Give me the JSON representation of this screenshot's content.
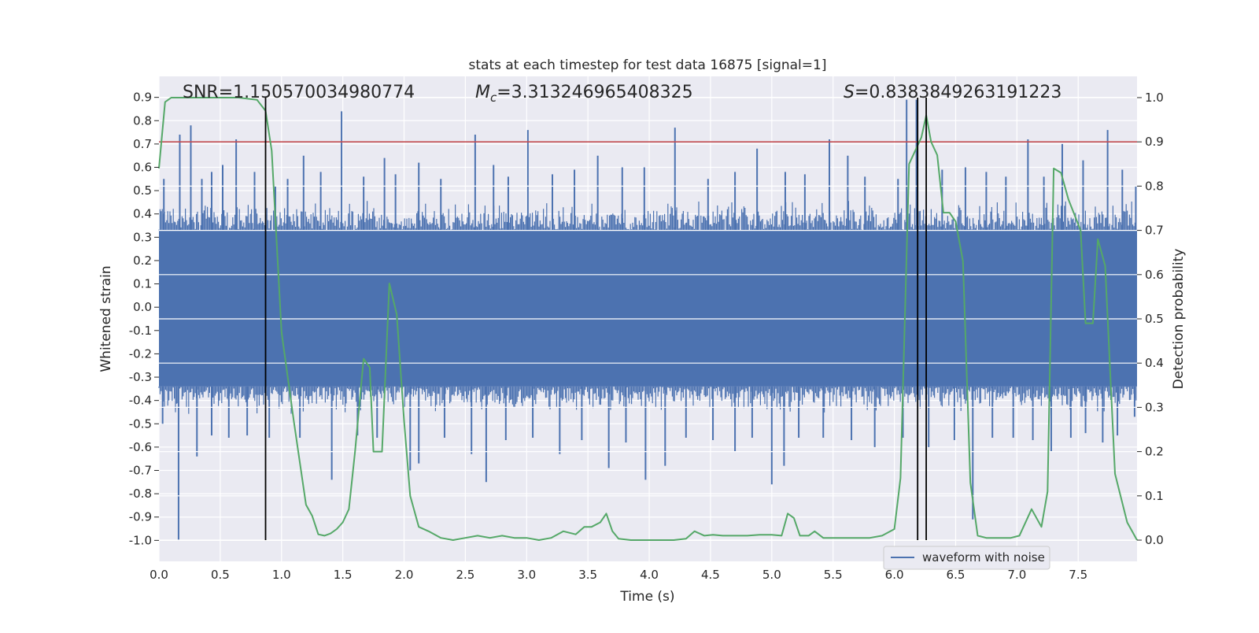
{
  "chart_data": {
    "type": "line",
    "title": "stats at each timestep for test data 16875 [signal=1]",
    "xlabel": "Time (s)",
    "ylabel": "Whitened strain",
    "y2label": "Detection probability",
    "xlim": [
      0.0,
      7.98
    ],
    "ylim": [
      -1.09,
      0.99
    ],
    "y2lim": [
      -0.048,
      1.048
    ],
    "x_ticks": [
      0.0,
      0.5,
      1.0,
      1.5,
      2.0,
      2.5,
      3.0,
      3.5,
      4.0,
      4.5,
      5.0,
      5.5,
      6.0,
      6.5,
      7.0,
      7.5
    ],
    "y_ticks": [
      -1.0,
      -0.9,
      -0.8,
      -0.7,
      -0.6,
      -0.5,
      -0.4,
      -0.3,
      -0.2,
      -0.1,
      0.0,
      0.1,
      0.2,
      0.3,
      0.4,
      0.5,
      0.6,
      0.7,
      0.8,
      0.9
    ],
    "y2_ticks": [
      0.0,
      0.1,
      0.2,
      0.3,
      0.4,
      0.5,
      0.6,
      0.7,
      0.8,
      0.9,
      1.0
    ],
    "annotations": {
      "snr": "SNR=1.150570034980774",
      "mc_symbol": "M",
      "mc_subscript": "c",
      "mc_value": "=3.313246965408325",
      "s_symbol": "S",
      "s_value": "=0.8383849263191223"
    },
    "threshold": {
      "value": 0.9,
      "axis": "right",
      "color": "#c44e52"
    },
    "vlines": [
      0.87,
      6.19,
      6.26
    ],
    "waveform_spikes": {
      "positive": [
        [
          0.04,
          0.55
        ],
        [
          0.17,
          0.74
        ],
        [
          0.26,
          0.78
        ],
        [
          0.35,
          0.55
        ],
        [
          0.43,
          0.58
        ],
        [
          0.52,
          0.61
        ],
        [
          0.63,
          0.72
        ],
        [
          0.78,
          0.58
        ],
        [
          0.95,
          0.52
        ],
        [
          1.05,
          0.55
        ],
        [
          1.18,
          0.65
        ],
        [
          1.32,
          0.58
        ],
        [
          1.49,
          0.84
        ],
        [
          1.67,
          0.56
        ],
        [
          1.84,
          0.64
        ],
        [
          1.93,
          0.57
        ],
        [
          2.12,
          0.62
        ],
        [
          2.3,
          0.55
        ],
        [
          2.58,
          0.74
        ],
        [
          2.73,
          0.61
        ],
        [
          2.85,
          0.56
        ],
        [
          3.01,
          0.76
        ],
        [
          3.21,
          0.57
        ],
        [
          3.39,
          0.59
        ],
        [
          3.58,
          0.65
        ],
        [
          3.78,
          0.6
        ],
        [
          3.96,
          0.6
        ],
        [
          4.21,
          0.77
        ],
        [
          4.48,
          0.55
        ],
        [
          4.7,
          0.58
        ],
        [
          4.88,
          0.68
        ],
        [
          5.11,
          0.58
        ],
        [
          5.27,
          0.57
        ],
        [
          5.47,
          0.72
        ],
        [
          5.62,
          0.65
        ],
        [
          5.76,
          0.56
        ],
        [
          6.03,
          0.55
        ],
        [
          6.1,
          0.89
        ],
        [
          6.18,
          0.89
        ],
        [
          6.39,
          0.59
        ],
        [
          6.58,
          0.6
        ],
        [
          6.75,
          0.58
        ],
        [
          6.91,
          0.56
        ],
        [
          7.09,
          0.72
        ],
        [
          7.22,
          0.56
        ],
        [
          7.37,
          0.7
        ],
        [
          7.54,
          0.63
        ],
        [
          7.74,
          0.76
        ],
        [
          7.86,
          0.59
        ],
        [
          7.97,
          0.52
        ]
      ],
      "negative": [
        [
          0.03,
          -0.5
        ],
        [
          0.16,
          -1.0
        ],
        [
          0.31,
          -0.64
        ],
        [
          0.43,
          -0.55
        ],
        [
          0.57,
          -0.56
        ],
        [
          0.72,
          -0.55
        ],
        [
          0.9,
          -0.56
        ],
        [
          1.15,
          -0.56
        ],
        [
          1.41,
          -0.74
        ],
        [
          1.62,
          -0.55
        ],
        [
          1.78,
          -0.56
        ],
        [
          2.05,
          -0.7
        ],
        [
          2.12,
          -0.67
        ],
        [
          2.33,
          -0.56
        ],
        [
          2.55,
          -0.63
        ],
        [
          2.67,
          -0.75
        ],
        [
          2.83,
          -0.57
        ],
        [
          3.05,
          -0.56
        ],
        [
          3.27,
          -0.63
        ],
        [
          3.45,
          -0.57
        ],
        [
          3.67,
          -0.69
        ],
        [
          3.81,
          -0.58
        ],
        [
          3.97,
          -0.74
        ],
        [
          4.13,
          -0.68
        ],
        [
          4.3,
          -0.56
        ],
        [
          4.52,
          -0.57
        ],
        [
          4.7,
          -0.62
        ],
        [
          4.84,
          -0.56
        ],
        [
          5.0,
          -0.76
        ],
        [
          5.1,
          -0.68
        ],
        [
          5.22,
          -0.56
        ],
        [
          5.42,
          -0.56
        ],
        [
          5.65,
          -0.57
        ],
        [
          5.84,
          -0.6
        ],
        [
          6.07,
          -0.56
        ],
        [
          6.28,
          -0.6
        ],
        [
          6.49,
          -0.57
        ],
        [
          6.64,
          -0.91
        ],
        [
          6.8,
          -0.56
        ],
        [
          6.97,
          -0.56
        ],
        [
          7.13,
          -0.57
        ],
        [
          7.28,
          -0.62
        ],
        [
          7.44,
          -0.56
        ],
        [
          7.56,
          -0.54
        ],
        [
          7.7,
          -0.58
        ],
        [
          7.82,
          -0.55
        ],
        [
          7.96,
          -0.47
        ]
      ]
    },
    "series": [
      {
        "name": "waveform with noise",
        "axis": "left",
        "color": "#4c72b0",
        "band_dense": [
          -0.34,
          0.33
        ],
        "band_outer": [
          -0.46,
          0.46
        ]
      },
      {
        "name": "detection probability",
        "axis": "right",
        "color": "#55a868",
        "x": [
          0.0,
          0.05,
          0.1,
          0.2,
          0.35,
          0.5,
          0.65,
          0.8,
          0.87,
          0.92,
          1.0,
          1.1,
          1.2,
          1.25,
          1.3,
          1.35,
          1.4,
          1.45,
          1.5,
          1.55,
          1.6,
          1.67,
          1.72,
          1.75,
          1.82,
          1.88,
          1.94,
          2.0,
          2.05,
          2.12,
          2.2,
          2.3,
          2.4,
          2.5,
          2.6,
          2.7,
          2.8,
          2.9,
          3.0,
          3.1,
          3.2,
          3.3,
          3.4,
          3.47,
          3.53,
          3.6,
          3.65,
          3.7,
          3.75,
          3.85,
          4.0,
          4.2,
          4.3,
          4.37,
          4.45,
          4.52,
          4.6,
          4.7,
          4.8,
          4.9,
          5.0,
          5.08,
          5.13,
          5.18,
          5.23,
          5.3,
          5.35,
          5.42,
          5.5,
          5.6,
          5.7,
          5.8,
          5.9,
          6.0,
          6.05,
          6.12,
          6.17,
          6.22,
          6.26,
          6.3,
          6.35,
          6.4,
          6.45,
          6.5,
          6.56,
          6.62,
          6.68,
          6.75,
          6.85,
          6.95,
          7.02,
          7.12,
          7.2,
          7.25,
          7.3,
          7.36,
          7.42,
          7.52,
          7.56,
          7.62,
          7.66,
          7.72,
          7.8,
          7.9,
          7.98
        ],
        "y": [
          0.84,
          0.99,
          1.0,
          1.0,
          1.0,
          1.0,
          1.0,
          0.995,
          0.97,
          0.88,
          0.47,
          0.27,
          0.08,
          0.055,
          0.013,
          0.01,
          0.015,
          0.025,
          0.04,
          0.07,
          0.2,
          0.41,
          0.39,
          0.2,
          0.2,
          0.58,
          0.51,
          0.27,
          0.1,
          0.03,
          0.02,
          0.005,
          0.0,
          0.005,
          0.01,
          0.005,
          0.01,
          0.005,
          0.005,
          0.0,
          0.005,
          0.02,
          0.013,
          0.03,
          0.03,
          0.04,
          0.06,
          0.02,
          0.003,
          0.0,
          0.0,
          0.0,
          0.003,
          0.02,
          0.01,
          0.012,
          0.01,
          0.01,
          0.01,
          0.012,
          0.012,
          0.01,
          0.06,
          0.05,
          0.01,
          0.01,
          0.02,
          0.005,
          0.005,
          0.005,
          0.005,
          0.005,
          0.01,
          0.025,
          0.14,
          0.85,
          0.88,
          0.91,
          0.96,
          0.9,
          0.87,
          0.74,
          0.74,
          0.72,
          0.63,
          0.13,
          0.01,
          0.005,
          0.005,
          0.005,
          0.01,
          0.07,
          0.03,
          0.11,
          0.84,
          0.83,
          0.77,
          0.7,
          0.49,
          0.49,
          0.68,
          0.62,
          0.15,
          0.04,
          0.0
        ]
      }
    ],
    "legend": {
      "label": "waveform with noise",
      "placement": "lower-right"
    }
  }
}
